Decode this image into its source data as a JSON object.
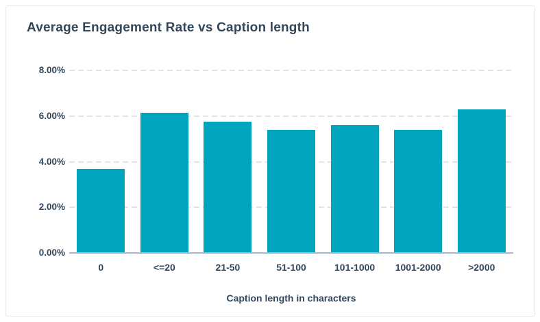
{
  "title": "Average Engagement Rate vs Caption length",
  "chart_data": {
    "type": "bar",
    "title": "Average Engagement Rate vs Caption length",
    "categories": [
      "0",
      "<=20",
      "21-50",
      "51-100",
      "101-1000",
      "1001-2000",
      ">2000"
    ],
    "values": [
      3.7,
      6.15,
      5.75,
      5.4,
      5.6,
      5.4,
      6.3
    ],
    "value_unit": "%",
    "xlabel": "Caption length in characters",
    "ylabel": "",
    "ylim": [
      0,
      8
    ],
    "y_ticks": [
      "0.00%",
      "2.00%",
      "4.00%",
      "6.00%",
      "8.00%"
    ],
    "grid": "horizontal-dashed",
    "legend_position": "none",
    "bar_color": "#00a4bd"
  },
  "colors": {
    "bar": "#00a4bd",
    "text": "#33475b",
    "gridline": "#dfe5f0",
    "axis_line": "#a9b8ca",
    "card_border": "#e5e9ef",
    "background": "#ffffff"
  }
}
